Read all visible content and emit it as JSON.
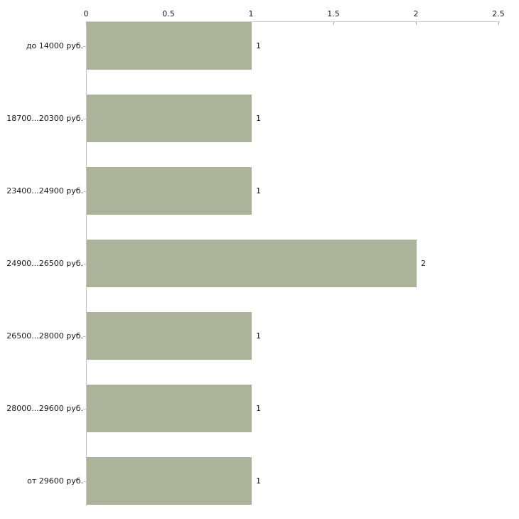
{
  "chart_data": {
    "type": "bar",
    "orientation": "horizontal",
    "title": "",
    "xlabel": "",
    "ylabel": "",
    "categories": [
      "до 14000 руб.",
      "18700...20300 руб.",
      "23400...24900 руб.",
      "24900...26500 руб.",
      "26500...28000 руб.",
      "28000...29600 руб.",
      "от 29600 руб."
    ],
    "values": [
      1,
      1,
      1,
      2,
      1,
      1,
      1
    ],
    "value_labels": [
      "1",
      "1",
      "1",
      "2",
      "1",
      "1",
      "1"
    ],
    "xlim": [
      0,
      2.5
    ],
    "x_ticks": [
      0,
      0.5,
      1,
      1.5,
      2,
      2.5
    ],
    "x_tick_labels": [
      "0",
      "0.5",
      "1",
      "1.5",
      "2",
      "2.5"
    ],
    "grid": false,
    "legend": "none",
    "colors": {
      "bar_fill": "#abb39a",
      "axis_line": "#c8c8c8",
      "x_tick_mark": "#a3ab8a",
      "cat_tick_mark": "#c2c7af",
      "text": "#1a1a1a",
      "background": "#ffffff"
    }
  }
}
